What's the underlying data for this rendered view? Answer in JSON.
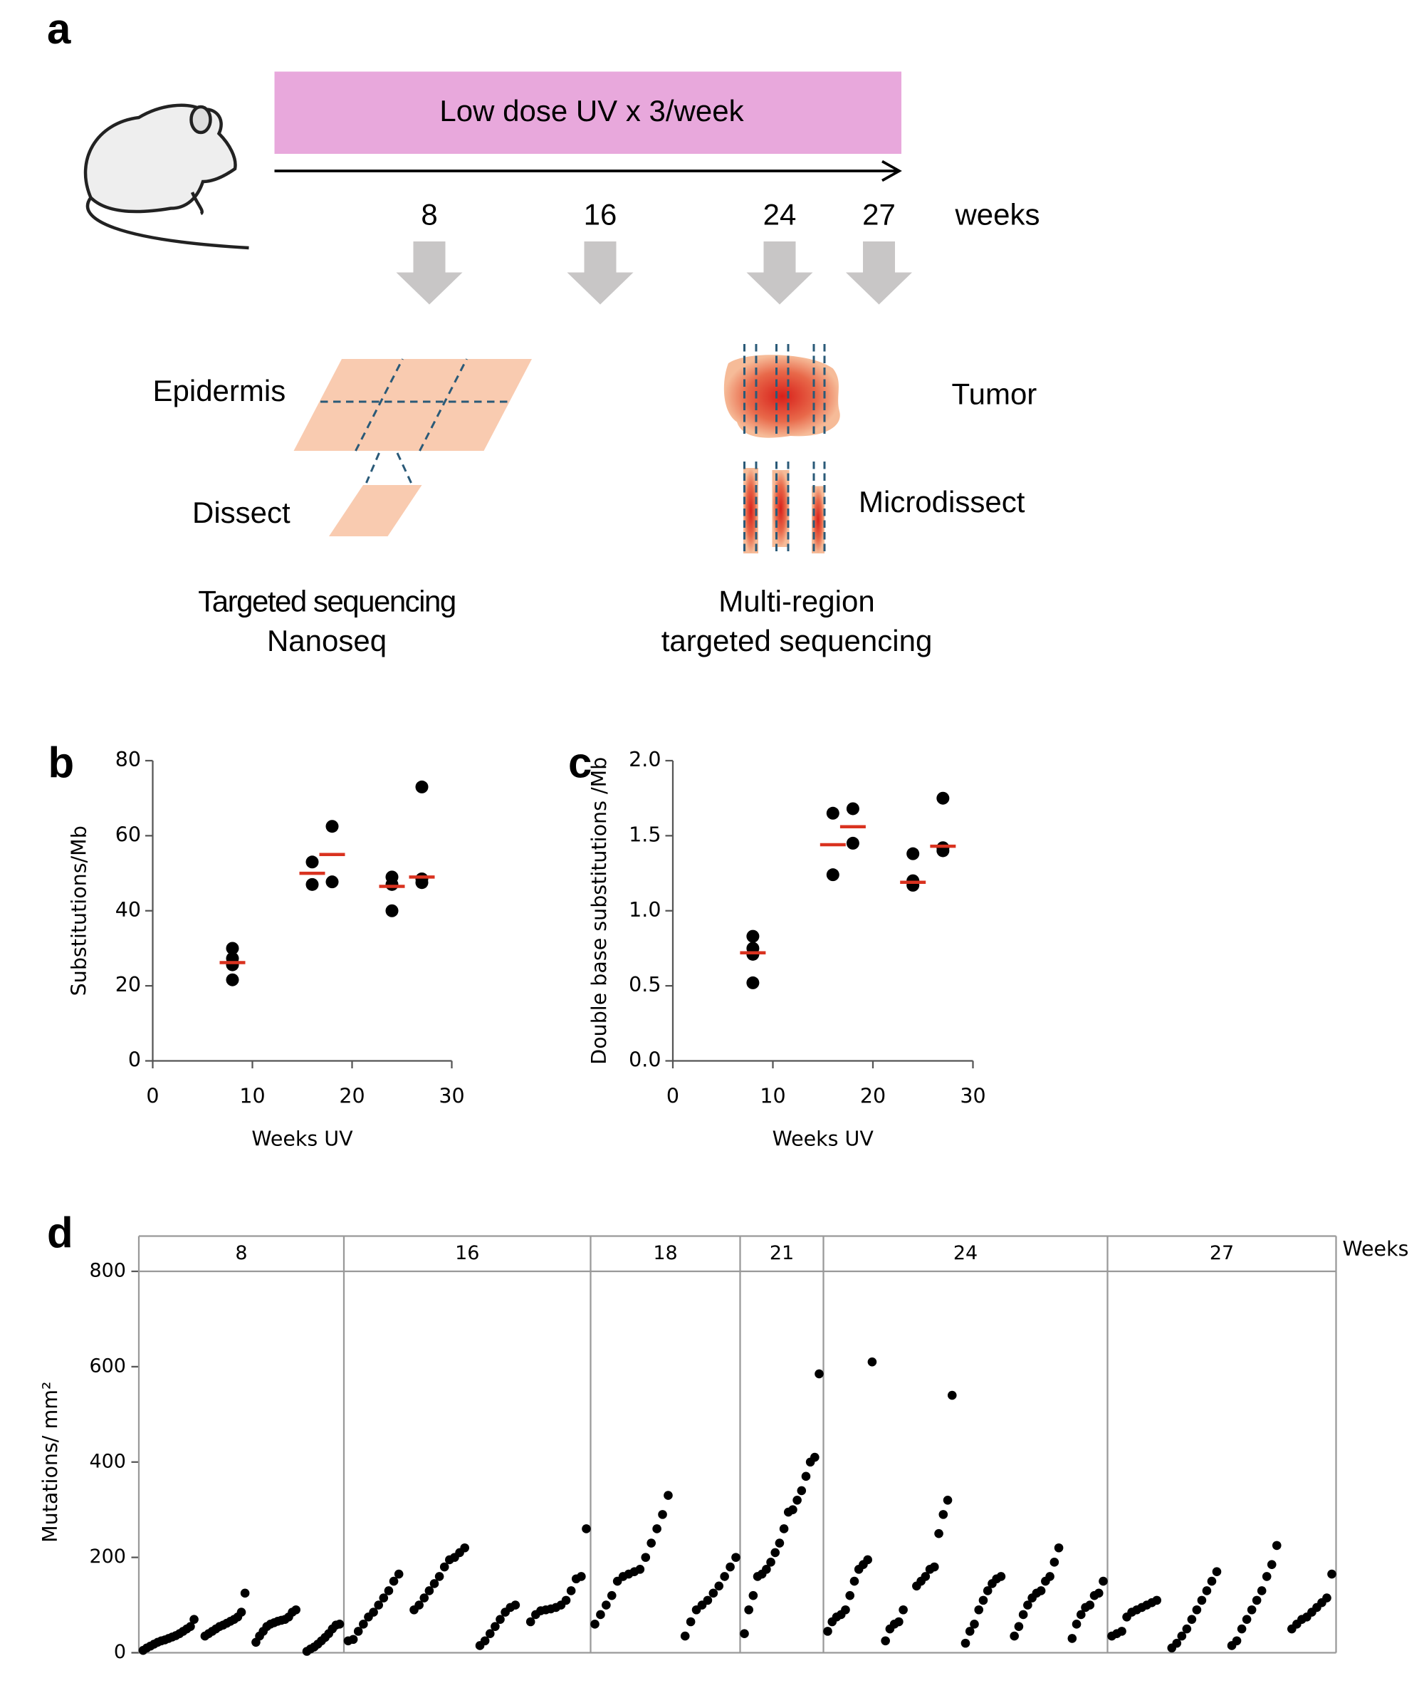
{
  "panel_a": {
    "label": "a",
    "banner": "Low dose UV x 3/week",
    "timepoints": [
      "8",
      "16",
      "24",
      "27"
    ],
    "unit": "weeks",
    "left": {
      "tissue": "Epidermis",
      "step": "Dissect",
      "method": [
        "Targeted sequencing",
        "Nanoseq"
      ]
    },
    "right": {
      "tissue": "Tumor",
      "step": "Microdissect",
      "method": [
        "Multi-region",
        "targeted sequencing"
      ]
    }
  },
  "chart_data": [
    {
      "type": "scatter",
      "label": "b",
      "xlabel": "Weeks UV",
      "ylabel": "Substitutions/Mb",
      "x": [
        8,
        8,
        8,
        8,
        16,
        16,
        18,
        18,
        24,
        24,
        24,
        27,
        27,
        27
      ],
      "values": [
        30,
        27.3,
        25.6,
        21.6,
        53,
        47,
        62.5,
        47.7,
        49,
        47,
        40,
        73,
        48.5,
        47.5
      ],
      "color": "#000000",
      "medians": {
        "x": [
          8,
          16,
          18,
          24,
          27
        ],
        "values": [
          26.2,
          50,
          55,
          46.5,
          49
        ],
        "color": "#d9321f"
      },
      "xlim": [
        0,
        30
      ],
      "xticks": [
        0,
        10,
        20,
        30
      ],
      "ylim": [
        0,
        80
      ],
      "yticks": [
        0,
        20,
        40,
        60,
        80
      ]
    },
    {
      "type": "scatter",
      "label": "c",
      "xlabel": "Weeks UV",
      "ylabel": "Double base substitutions /Mb",
      "x": [
        8,
        8,
        8,
        8,
        16,
        16,
        18,
        18,
        24,
        24,
        24,
        27,
        27,
        27
      ],
      "values": [
        0.83,
        0.75,
        0.71,
        0.52,
        1.65,
        1.24,
        1.68,
        1.45,
        1.38,
        1.2,
        1.17,
        1.75,
        1.42,
        1.4
      ],
      "color": "#000000",
      "medians": {
        "x": [
          8,
          16,
          18,
          24,
          27
        ],
        "values": [
          0.72,
          1.44,
          1.56,
          1.19,
          1.43
        ],
        "color": "#d9321f"
      },
      "xlim": [
        0,
        30
      ],
      "xticks": [
        0,
        10,
        20,
        30
      ],
      "ylim": [
        0,
        2.0
      ],
      "yticks": [
        {
          "value": 0,
          "label": "0.0"
        },
        0.5,
        {
          "value": 1,
          "label": "1.0"
        },
        1.5,
        {
          "value": 2,
          "label": "2.0"
        }
      ]
    },
    {
      "type": "faceted_scatter",
      "label": "d",
      "ylabel": "Mutations/ mm²",
      "facet_title": "Weeks",
      "color": "#000000",
      "ylim": [
        0,
        800
      ],
      "yticks": [
        0,
        200,
        400,
        600,
        800
      ],
      "facets": [
        {
          "name": "8",
          "samples": [
            [
              5,
              10,
              14,
              18,
              22,
              25,
              27,
              30,
              33,
              36,
              40,
              45,
              50,
              55,
              70
            ],
            [
              35,
              40,
              45,
              50,
              55,
              58,
              62,
              66,
              70,
              75,
              85,
              125
            ],
            [
              22,
              35,
              45,
              55,
              60,
              63,
              66,
              68,
              70,
              75,
              85,
              90
            ],
            [
              3,
              8,
              12,
              18,
              25,
              32,
              40,
              50,
              58,
              60
            ]
          ]
        },
        {
          "name": "16",
          "samples": [
            [
              25,
              28,
              45,
              60,
              75,
              85,
              100,
              115,
              130,
              150,
              165
            ],
            [
              90,
              100,
              115,
              130,
              145,
              160,
              180,
              195,
              200,
              210,
              220
            ],
            [
              15,
              25,
              40,
              55,
              70,
              85,
              95,
              100
            ],
            [
              65,
              80,
              88,
              90,
              92,
              95,
              100,
              110,
              130,
              155,
              160,
              260
            ]
          ]
        },
        {
          "name": "18",
          "samples": [
            [
              60,
              80,
              100,
              120,
              150,
              160,
              165,
              170,
              175,
              200,
              230,
              260,
              290,
              330
            ],
            [
              35,
              65,
              90,
              100,
              110,
              125,
              140,
              160,
              180,
              200
            ]
          ]
        },
        {
          "name": "21",
          "samples": [
            [
              40,
              90,
              120,
              160,
              165,
              175,
              190,
              210,
              230,
              260,
              295,
              300,
              320,
              340,
              370,
              400,
              410,
              585
            ]
          ]
        },
        {
          "name": "24",
          "samples": [
            [
              45,
              65,
              75,
              80,
              90,
              120,
              150,
              175,
              185,
              195,
              610
            ],
            [
              25,
              50,
              60,
              65,
              90
            ],
            [
              140,
              150,
              160,
              175,
              180,
              250,
              290,
              320,
              540
            ],
            [
              20,
              45,
              60,
              90,
              110,
              130,
              145,
              155,
              160
            ],
            [
              35,
              55,
              80,
              100,
              115,
              125,
              130,
              150,
              160,
              190,
              220
            ],
            [
              30,
              60,
              80,
              95,
              100,
              120,
              125,
              150
            ]
          ]
        },
        {
          "name": "27",
          "samples": [
            [
              35,
              40,
              45,
              75,
              85,
              90,
              95,
              100,
              105,
              110
            ],
            [
              10,
              20,
              35,
              50,
              70,
              90,
              110,
              130,
              150,
              170
            ],
            [
              15,
              25,
              50,
              70,
              90,
              110,
              130,
              160,
              185,
              225
            ],
            [
              50,
              60,
              70,
              75,
              85,
              95,
              105,
              115,
              165
            ]
          ]
        }
      ]
    }
  ]
}
